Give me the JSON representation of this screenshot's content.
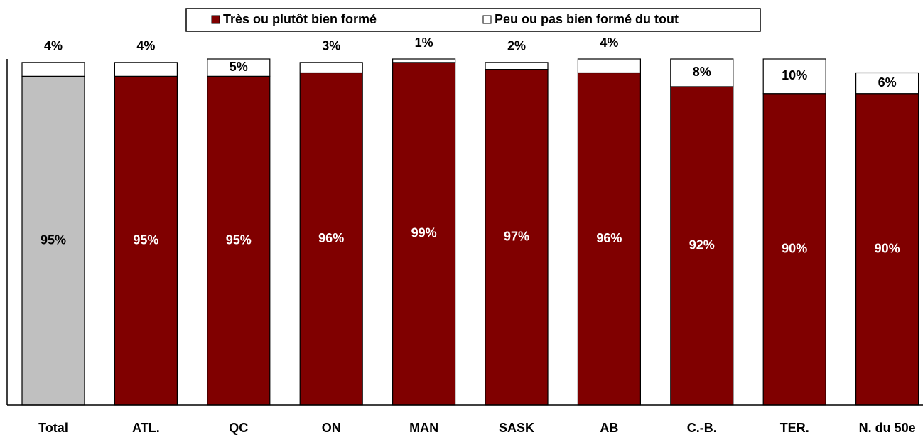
{
  "chart_data": {
    "type": "stacked_bar",
    "categories": [
      "Total",
      "ATL.",
      "QC",
      "ON",
      "MAN",
      "SASK",
      "AB",
      "C.-B.",
      "TER.",
      "N. du 50e"
    ],
    "series": [
      {
        "name": "Très ou plutôt bien formé",
        "color": "#800000",
        "colors": [
          "#c0c0c0",
          "#800000",
          "#800000",
          "#800000",
          "#800000",
          "#800000",
          "#800000",
          "#800000",
          "#800000",
          "#800000"
        ],
        "values": [
          95,
          95,
          95,
          96,
          99,
          97,
          96,
          92,
          90,
          90
        ],
        "value_labels": [
          "95%",
          "95%",
          "95%",
          "96%",
          "99%",
          "97%",
          "96%",
          "92%",
          "90%",
          "90%"
        ]
      },
      {
        "name": "Peu ou pas bien formé du tout",
        "color": "#ffffff",
        "values": [
          4,
          4,
          5,
          3,
          1,
          2,
          4,
          8,
          10,
          6
        ],
        "value_labels": [
          "4%",
          "4%",
          "5%",
          "3%",
          "1%",
          "2%",
          "4%",
          "8%",
          "10%",
          "6%"
        ]
      }
    ],
    "ylim": [
      0,
      100
    ],
    "legend": "top"
  }
}
